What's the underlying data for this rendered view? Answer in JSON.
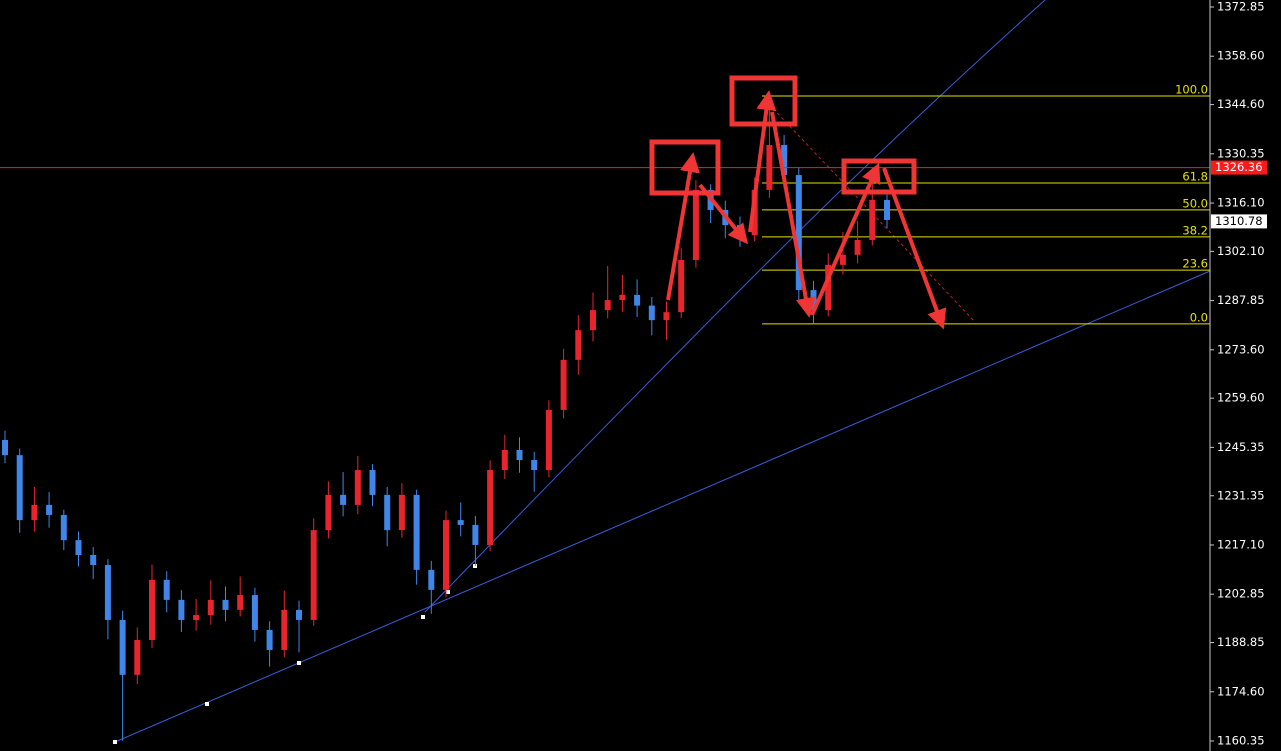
{
  "chart_data": {
    "type": "candlestick",
    "ylim": [
      1157.45,
      1374.88
    ],
    "yticks": [
      1372.85,
      {
        "value": 1358.6,
        "label": "1358.60"
      },
      {
        "value": 1344.6,
        "label": "1344.60"
      },
      1330.35,
      {
        "value": 1316.1,
        "label": "1316.10"
      },
      {
        "value": 1302.1,
        "label": "1302.10"
      },
      1287.85,
      {
        "value": 1273.6,
        "label": "1273.60"
      },
      {
        "value": 1259.6,
        "label": "1259.60"
      },
      1245.35,
      1231.35,
      {
        "value": 1217.1,
        "label": "1217.10"
      },
      1202.85,
      1188.85,
      {
        "value": 1174.6,
        "label": "1174.60"
      },
      1160.35
    ],
    "up_color": "#e8252d",
    "down_color": "#3f86e8",
    "open": [
      1247.5,
      1243.1,
      1224.3,
      1228.7,
      1225.8,
      1218.5,
      1214.2,
      1211.3,
      1195.4,
      1179.5,
      1189.6,
      1207.0,
      1201.2,
      1195.4,
      1196.8,
      1201.2,
      1198.3,
      1202.6,
      1192.5,
      1186.7,
      1198.3,
      1195.4,
      1221.4,
      1231.6,
      1228.7,
      1238.8,
      1231.6,
      1221.4,
      1231.6,
      1209.9,
      1204.1,
      1224.3,
      1222.9,
      1217.1,
      1238.8,
      1244.6,
      1241.7,
      1238.8,
      1256.2,
      1270.7,
      1279.3,
      1285.1,
      1288.0,
      1289.5,
      1286.4,
      1282.2,
      1284.5,
      1299.6,
      1319.9,
      1314.1,
      1309.7,
      1306.8,
      1319.9,
      1332.9,
      1324.2,
      1290.9,
      1285.1,
      1298.2,
      1301.1,
      1305.4,
      1317.0
    ],
    "high": [
      1250.2,
      1245.0,
      1233.9,
      1232.4,
      1227.3,
      1221.0,
      1216.5,
      1213.0,
      1198.1,
      1193.2,
      1211.4,
      1209.5,
      1204.0,
      1201.5,
      1206.9,
      1205.1,
      1208.0,
      1204.7,
      1195.0,
      1203.9,
      1201.0,
      1224.8,
      1235.5,
      1238.2,
      1242.9,
      1240.5,
      1233.9,
      1235.0,
      1233.1,
      1212.5,
      1227.0,
      1229.4,
      1225.5,
      1241.6,
      1249.0,
      1248.3,
      1244.1,
      1259.0,
      1273.9,
      1283.6,
      1290.2,
      1297.9,
      1295.3,
      1294.0,
      1288.9,
      1287.6,
      1303.0,
      1322.7,
      1321.5,
      1316.8,
      1312.2,
      1323.5,
      1347.1,
      1335.8,
      1326.5,
      1293.6,
      1301.5,
      1307.7,
      1310.9,
      1326.4,
      1319.0
    ],
    "low": [
      1240.8,
      1220.6,
      1221.0,
      1222.1,
      1215.6,
      1210.9,
      1207.2,
      1189.8,
      1160.4,
      1176.8,
      1187.3,
      1197.6,
      1191.9,
      1192.3,
      1194.0,
      1195.0,
      1196.4,
      1189.1,
      1181.9,
      1184.6,
      1186.0,
      1193.7,
      1219.0,
      1225.4,
      1226.0,
      1228.3,
      1216.7,
      1219.2,
      1205.6,
      1197.2,
      1202.0,
      1219.6,
      1211.0,
      1215.3,
      1236.2,
      1238.0,
      1232.5,
      1236.7,
      1253.8,
      1266.4,
      1276.0,
      1282.7,
      1284.6,
      1283.1,
      1277.8,
      1276.5,
      1282.8,
      1297.4,
      1310.3,
      1305.9,
      1303.4,
      1305.0,
      1317.6,
      1320.4,
      1287.0,
      1281.1,
      1283.3,
      1295.4,
      1298.6,
      1303.8,
      1308.8
    ],
    "close": [
      1243.1,
      1224.3,
      1228.7,
      1225.8,
      1218.5,
      1214.2,
      1211.3,
      1195.4,
      1179.5,
      1189.6,
      1207.0,
      1201.2,
      1195.4,
      1196.8,
      1201.2,
      1198.3,
      1202.6,
      1192.5,
      1186.7,
      1198.3,
      1195.4,
      1221.4,
      1231.6,
      1228.7,
      1238.8,
      1231.6,
      1221.4,
      1231.6,
      1209.9,
      1204.1,
      1224.3,
      1222.9,
      1217.1,
      1238.8,
      1244.6,
      1241.7,
      1238.8,
      1256.2,
      1270.7,
      1279.3,
      1285.1,
      1288.0,
      1289.5,
      1286.4,
      1282.2,
      1284.5,
      1299.6,
      1319.9,
      1314.1,
      1309.7,
      1306.8,
      1319.9,
      1332.9,
      1324.2,
      1290.9,
      1285.1,
      1298.2,
      1301.1,
      1305.4,
      1317.0,
      1311.2
    ],
    "fibonacci": {
      "high": 1347.1,
      "low": 1281.1,
      "color": "#e6e000",
      "levels": [
        {
          "value": 100,
          "label": "100.0"
        },
        61.8,
        {
          "value": 50,
          "label": "50.0"
        },
        38.2,
        23.6,
        {
          "value": 0,
          "label": "0.0"
        }
      ]
    },
    "price_lines": [
      {
        "value": 1326.36,
        "color": "#ff1a1a"
      },
      {
        "value": 1310.78,
        "color": "#ffffff"
      }
    ]
  }
}
